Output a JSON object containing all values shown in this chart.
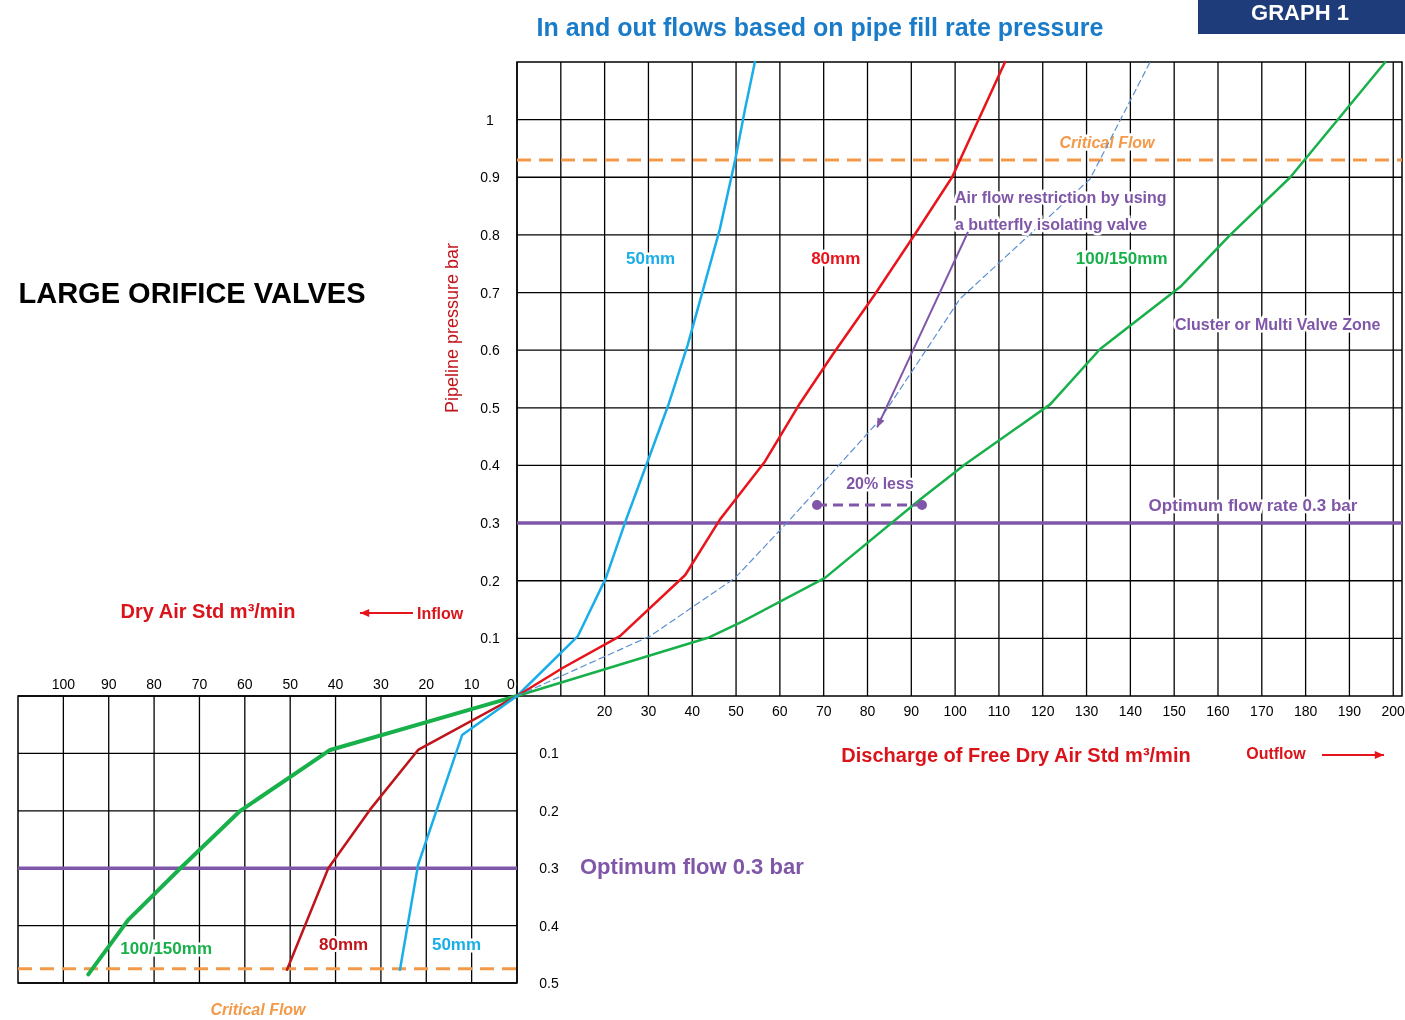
{
  "chart_data": [
    {
      "type": "line",
      "title": "In and out flows based on pipe fill rate pressure",
      "xlabel": "Discharge of Free Dry Air Std m³/min",
      "ylabel": "Pipeline pressure bar",
      "xlim": [
        0,
        202
      ],
      "ylim": [
        0,
        1.1
      ],
      "xticks": [
        {
          "value": 0,
          "label": null
        },
        {
          "value": 10,
          "label": null
        },
        20,
        30,
        40,
        50,
        60,
        70,
        80,
        90,
        100,
        110,
        120,
        130,
        140,
        150,
        160,
        170,
        180,
        190,
        200
      ],
      "yticks": [
        0.1,
        0.2,
        0.3,
        0.4,
        0.5,
        0.6,
        0.7,
        0.8,
        0.9,
        1
      ],
      "grid": true,
      "legend": false,
      "marker": "none",
      "series": [
        {
          "name": "50mm",
          "color": "#1aaee8",
          "x": [
            0,
            13.9,
            20.3,
            24.9,
            30.4,
            34.5,
            39,
            42.5,
            46.3,
            49.8,
            52.1,
            54.3
          ],
          "values": [
            0,
            0.104,
            0.205,
            0.306,
            0.419,
            0.504,
            0.61,
            0.706,
            0.81,
            0.93,
            1.02,
            1.1
          ]
        },
        {
          "name": "80mm",
          "color": "#e8141b",
          "x": [
            0,
            10.5,
            23.5,
            38.4,
            46.3,
            56.6,
            64.6,
            72.1,
            81.7,
            90.9,
            99.3,
            111.4
          ],
          "values": [
            0,
            0.049,
            0.104,
            0.21,
            0.306,
            0.407,
            0.508,
            0.593,
            0.697,
            0.802,
            0.9,
            1.1
          ]
        },
        {
          "name": "100/150mm",
          "color": "#18b04a",
          "x": [
            0,
            43.6,
            51.4,
            70.3,
            92,
            102.3,
            121.7,
            133.1,
            151.4,
            162.8,
            176.5,
            198.2
          ],
          "values": [
            0,
            0.101,
            0.129,
            0.205,
            0.341,
            0.402,
            0.506,
            0.602,
            0.71,
            0.8,
            0.9,
            1.1
          ]
        },
        {
          "color": "#5b8fd0",
          "line_style": "dashed",
          "x": [
            0,
            30.4,
            49.8,
            62.3,
            82.9,
            101.1,
            130.8,
            144.5
          ],
          "values": [
            0,
            0.104,
            0.205,
            0.306,
            0.48,
            0.689,
            0.897,
            1.1
          ]
        }
      ],
      "ref_lines": [
        {
          "axis": "y",
          "value": 0.93,
          "label": "Critical Flow",
          "color": "#f39a4a",
          "line_style": "dashed"
        },
        {
          "axis": "y",
          "value": 0.3,
          "label": "Optimum flow rate 0.3 bar",
          "color": "#7f56a8",
          "line_style": "solid"
        }
      ],
      "annotations": [
        {
          "text": "Air flow restriction by using a butterfly isolating valve",
          "x": 82.2,
          "y": 0.466
        },
        "20% less",
        "Cluster or Multi Valve Zone",
        "Outflow",
        "LARGE ORIFICE VALVES",
        "GRAPH 1"
      ]
    },
    {
      "type": "line",
      "xlabel": "Dry Air Std m³/min",
      "xlim": [
        110,
        0
      ],
      "ylim": [
        0.5,
        0
      ],
      "xticks": [
        0,
        10,
        20,
        30,
        40,
        50,
        60,
        70,
        80,
        90,
        100
      ],
      "yticks": [
        {
          "value": 0,
          "label": null
        },
        0.1,
        0.2,
        0.3,
        0.4,
        0.5
      ],
      "grid": true,
      "legend": false,
      "marker": "none",
      "series": [
        {
          "name": "100/150mm",
          "color": "#18b04a",
          "x": [
            0,
            41.2,
            61,
            74.2,
            85.7,
            94.5
          ],
          "values": [
            0,
            0.094,
            0.2,
            0.3,
            0.39,
            0.485
          ]
        },
        {
          "name": "80mm",
          "color": "#c0141b",
          "x": [
            0,
            21.8,
            32.4,
            41.6,
            50.7
          ],
          "values": [
            0,
            0.094,
            0.198,
            0.3,
            0.477
          ]
        },
        {
          "name": "50mm",
          "color": "#1aaee8",
          "x": [
            0,
            12.1,
            21.8,
            25.8
          ],
          "values": [
            0,
            0.068,
            0.294,
            0.477
          ]
        }
      ],
      "ref_lines": [
        {
          "axis": "y",
          "value": 0.3,
          "label": "Optimum flow 0.3 bar",
          "color": "#7f56a8",
          "line_style": "solid"
        },
        {
          "axis": "y",
          "value": 0.475,
          "label": "Critical Flow",
          "color": "#f39a4a",
          "line_style": "dashed"
        }
      ],
      "annotations": [
        "Inflow"
      ]
    }
  ]
}
